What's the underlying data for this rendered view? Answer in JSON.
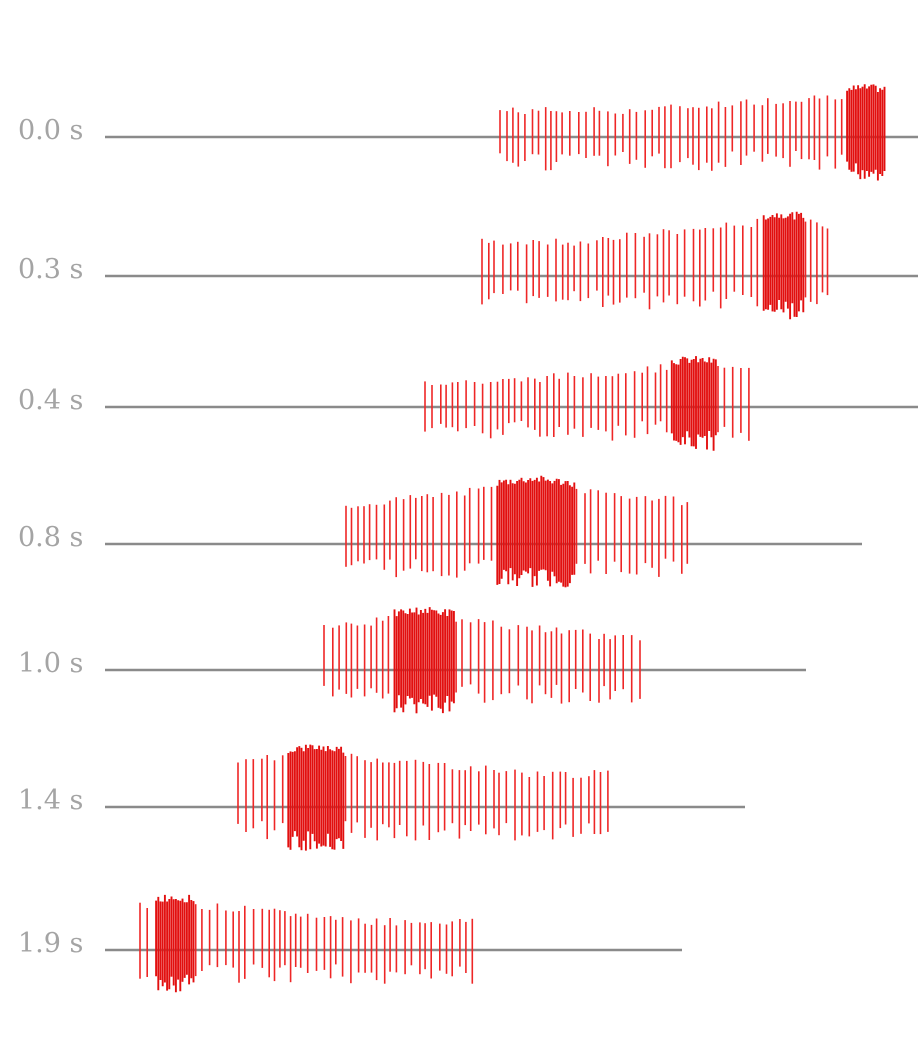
{
  "rows": [
    {
      "label": "0.0 s"
    },
    {
      "label": "0.3 s"
    },
    {
      "label": "0.4 s"
    },
    {
      "label": "0.8 s"
    },
    {
      "label": "1.0 s"
    },
    {
      "label": "1.4 s"
    },
    {
      "label": "1.9 s"
    }
  ],
  "colors": {
    "spike": "#ee2626",
    "dense_spike": "#e20f0f",
    "baseline": "#8a8a8a",
    "label": "#a4a4a4",
    "background": "#ffffff"
  }
}
